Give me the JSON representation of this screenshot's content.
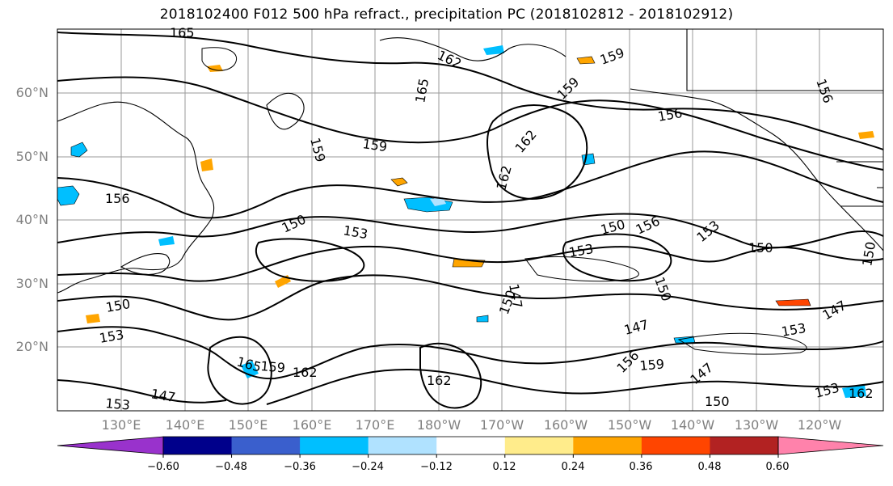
{
  "title": "2018102400 F012 500 hPa refract., precipitation PC (2018102812 - 2018102912)",
  "lat_labels": [
    "60°N",
    "50°N",
    "40°N",
    "30°N",
    "20°N"
  ],
  "lon_labels": [
    "130°E",
    "140°E",
    "150°E",
    "160°E",
    "170°E",
    "180°W",
    "170°W",
    "160°W",
    "150°W",
    "140°W",
    "130°W",
    "120°W"
  ],
  "contour_labels": [
    "165",
    "162",
    "159",
    "165",
    "159",
    "159",
    "156",
    "156",
    "159",
    "162",
    "162",
    "156",
    "150",
    "153",
    "153",
    "150",
    "156",
    "153",
    "150",
    "150",
    "147",
    "150",
    "153",
    "147",
    "153",
    "147",
    "165",
    "159",
    "162",
    "162",
    "156",
    "159",
    "147",
    "150",
    "153",
    "147",
    "150",
    "153",
    "162",
    "150"
  ],
  "colorbar": {
    "tick_labels": [
      "−0.60",
      "−0.48",
      "−0.36",
      "−0.24",
      "−0.12",
      "0.12",
      "0.24",
      "0.36",
      "0.48",
      "0.60"
    ],
    "colors": [
      "#9932cc",
      "#00008b",
      "#3a5fcd",
      "#00bfff",
      "#b0e2ff",
      "#ffffff",
      "#ffec8b",
      "#ffa500",
      "#ff4500",
      "#b22222",
      "#ff82ab"
    ]
  }
}
